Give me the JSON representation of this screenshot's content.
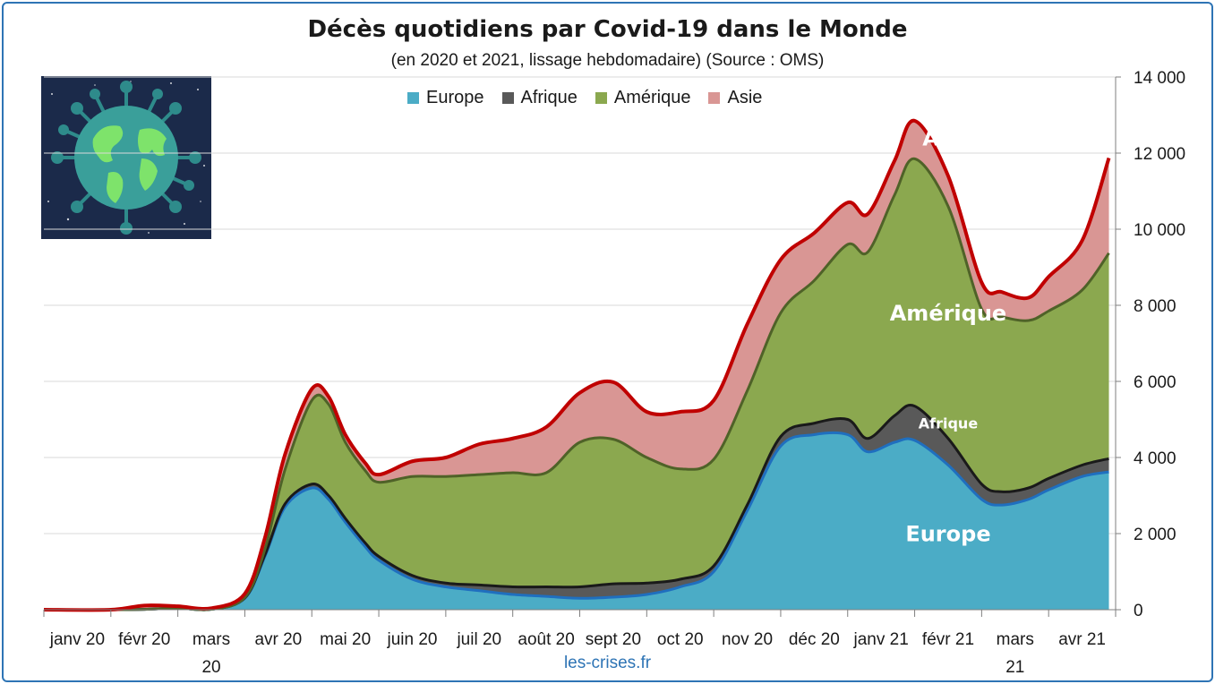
{
  "chart_data": {
    "type": "area",
    "stacked": true,
    "title": "Décès quotidiens par Covid-19 dans le Monde",
    "subtitle": "(en 2020 et 2021, lissage hebdomadaire) (Source : OMS)",
    "source": "les-crises.fr",
    "y_axis_position": "right",
    "ylim": [
      0,
      14000
    ],
    "y_ticks": [
      "0",
      "2 000",
      "4 000",
      "6 000",
      "8 000",
      "10 000",
      "12 000",
      "14 000"
    ],
    "y_tick_values": [
      0,
      2000,
      4000,
      6000,
      8000,
      10000,
      12000,
      14000
    ],
    "xlim": [
      0,
      16
    ],
    "x_tick_positions": [
      0.5,
      1.5,
      2.5,
      3.5,
      4.5,
      5.5,
      6.5,
      7.5,
      8.5,
      9.5,
      10.5,
      11.5,
      12.5,
      13.5,
      14.5,
      15.5
    ],
    "x_tick_labels": [
      [
        "janv 20"
      ],
      [
        "févr 20"
      ],
      [
        "mars",
        "20"
      ],
      [
        "avr 20"
      ],
      [
        "mai 20"
      ],
      [
        "juin 20"
      ],
      [
        "juil 20"
      ],
      [
        "août 20"
      ],
      [
        "sept 20"
      ],
      [
        "oct 20"
      ],
      [
        "nov 20"
      ],
      [
        "déc 20"
      ],
      [
        "janv 21"
      ],
      [
        "févr 21"
      ],
      [
        "mars",
        "21"
      ],
      [
        "avr 21"
      ]
    ],
    "x": [
      0,
      1,
      1.5,
      2,
      2.5,
      3,
      3.3,
      3.6,
      4,
      4.25,
      4.5,
      4.8,
      5,
      5.5,
      6,
      6.5,
      7,
      7.5,
      8,
      8.5,
      9,
      9.5,
      10,
      10.5,
      11,
      11.5,
      12,
      12.3,
      12.7,
      13,
      13.5,
      14,
      14.3,
      14.7,
      15,
      15.5,
      15.9
    ],
    "legend_position": "top-center",
    "grid": true,
    "series": [
      {
        "name": "Europe",
        "color": "#4bacc6",
        "line_color": "#1f6fbf",
        "values": [
          0,
          0,
          10,
          40,
          10,
          300,
          1400,
          2700,
          3200,
          2900,
          2300,
          1650,
          1300,
          800,
          600,
          500,
          400,
          350,
          300,
          330,
          400,
          600,
          1000,
          2600,
          4300,
          4600,
          4600,
          4150,
          4400,
          4450,
          3800,
          2900,
          2750,
          2900,
          3150,
          3500,
          3620
        ]
      },
      {
        "name": "Afrique",
        "color": "#595959",
        "line_color": "#1a1a1a",
        "values": [
          0,
          0,
          0,
          0,
          0,
          10,
          40,
          80,
          100,
          100,
          100,
          100,
          100,
          100,
          100,
          150,
          200,
          250,
          300,
          350,
          300,
          200,
          150,
          150,
          250,
          300,
          400,
          350,
          700,
          900,
          700,
          400,
          350,
          300,
          300,
          300,
          350
        ]
      },
      {
        "name": "Amérique",
        "color": "#8ba84f",
        "line_color": "#4f6228",
        "values": [
          0,
          0,
          0,
          0,
          0,
          10,
          150,
          900,
          2200,
          2400,
          2000,
          1900,
          1950,
          2600,
          2800,
          2900,
          3000,
          3000,
          3800,
          3800,
          3300,
          2900,
          2800,
          3000,
          3250,
          3750,
          4600,
          4900,
          5800,
          6500,
          6100,
          4600,
          4600,
          4400,
          4400,
          4600,
          5400
        ]
      },
      {
        "name": "Asie",
        "color": "#d99694",
        "line_color": "#c00000",
        "values": [
          0,
          0,
          100,
          50,
          30,
          100,
          300,
          400,
          300,
          200,
          200,
          200,
          200,
          400,
          500,
          800,
          900,
          1200,
          1300,
          1500,
          1200,
          1500,
          1550,
          1750,
          1400,
          1250,
          1100,
          1000,
          900,
          1000,
          800,
          700,
          650,
          600,
          900,
          1300,
          2500
        ]
      }
    ],
    "area_labels": [
      {
        "text": "Europe",
        "x": 13.5,
        "y": 2000,
        "size": 24
      },
      {
        "text": "Afrique",
        "x": 13.5,
        "y": 4900,
        "size": 16
      },
      {
        "text": "Amérique",
        "x": 13.5,
        "y": 7800,
        "size": 24
      },
      {
        "text": "Asie",
        "x": 13.5,
        "y": 12400,
        "size": 24
      }
    ]
  }
}
